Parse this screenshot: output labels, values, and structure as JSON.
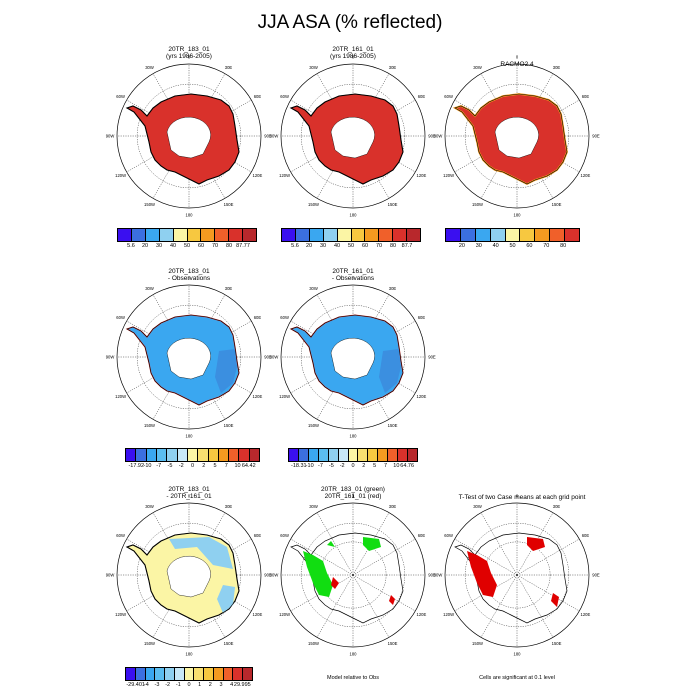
{
  "main_title": "JJA ASA (% reflected)",
  "lon_labels": [
    "0",
    "30E",
    "60E",
    "90E",
    "120E",
    "150E",
    "180",
    "150W",
    "120W",
    "90W",
    "60W",
    "30W"
  ],
  "panels": [
    {
      "id": "p1",
      "title1": "20TR_183_01",
      "title2": "(yrs 1986-2005)",
      "fill": "#d9312b",
      "kind": "full"
    },
    {
      "id": "p2",
      "title1": "20TR_161_01",
      "title2": "(yrs 1986-2005)",
      "fill": "#d9312b",
      "kind": "full"
    },
    {
      "id": "p3",
      "title1": "RACMO2.4",
      "title2": "",
      "fill": "#d9312b",
      "kind": "full_edge"
    },
    {
      "id": "p4",
      "title1": "20TR_183_01",
      "title2": "- Observations",
      "fill": "#3aa7f0",
      "kind": "diff"
    },
    {
      "id": "p5",
      "title1": "20TR_161_01",
      "title2": "- Observations",
      "fill": "#3aa7f0",
      "kind": "diff"
    },
    {
      "id": "p7",
      "title1": "20TR_183_01",
      "title2": "- 20TR_161_01",
      "fill": "#fbf5a5",
      "kind": "cross"
    },
    {
      "id": "p8",
      "title1": "20TR_183_01 (green)",
      "title2": "20TR_161_01 (red)",
      "fill": "none",
      "kind": "sig_green"
    },
    {
      "id": "p9",
      "title1": "T-Test of two Case means at each grid point",
      "title2": "",
      "fill": "none",
      "kind": "sig_red"
    }
  ],
  "colorbars": [
    {
      "id": "cb1",
      "colors": [
        "#3a0ff0",
        "#3b6fe0",
        "#3aa7f0",
        "#8fd0f0",
        "#fbf5a5",
        "#f7c840",
        "#f49a20",
        "#f0602a",
        "#d9312b",
        "#b8282c"
      ],
      "labels": [
        "5.6",
        "20",
        "30",
        "40",
        "50",
        "60",
        "70",
        "80",
        "87.77"
      ]
    },
    {
      "id": "cb2",
      "colors": [
        "#3a0ff0",
        "#3b6fe0",
        "#3aa7f0",
        "#8fd0f0",
        "#fbf5a5",
        "#f7c840",
        "#f49a20",
        "#f0602a",
        "#d9312b",
        "#b8282c"
      ],
      "labels": [
        "5.6",
        "20",
        "30",
        "40",
        "50",
        "60",
        "70",
        "80",
        "87.7"
      ]
    },
    {
      "id": "cb3",
      "colors": [
        "#3a0ff0",
        "#3b6fe0",
        "#3aa7f0",
        "#8fd0f0",
        "#fbf5a5",
        "#f7c840",
        "#f49a20",
        "#f0602a",
        "#d9312b"
      ],
      "labels": [
        "20",
        "30",
        "40",
        "50",
        "60",
        "70",
        "80"
      ]
    },
    {
      "id": "cb4",
      "colors": [
        "#3a0ff0",
        "#3b6fe0",
        "#3aa7f0",
        "#5bbdf0",
        "#8fd0f0",
        "#c8e8f7",
        "#fbf5a5",
        "#f9e070",
        "#f7c840",
        "#f49a20",
        "#f0602a",
        "#d9312b",
        "#b8282c"
      ],
      "labels": [
        "-17.92",
        "-10",
        "-7",
        "-5",
        "-2",
        "0",
        "2",
        "5",
        "7",
        "10",
        "64.42"
      ]
    },
    {
      "id": "cb5",
      "colors": [
        "#3a0ff0",
        "#3b6fe0",
        "#3aa7f0",
        "#5bbdf0",
        "#8fd0f0",
        "#c8e8f7",
        "#fbf5a5",
        "#f9e070",
        "#f7c840",
        "#f49a20",
        "#f0602a",
        "#d9312b",
        "#b8282c"
      ],
      "labels": [
        "-18.31",
        "-10",
        "-7",
        "-5",
        "-2",
        "0",
        "2",
        "5",
        "7",
        "10",
        "64.76"
      ]
    },
    {
      "id": "cb6",
      "colors": [
        "#3a0ff0",
        "#3b6fe0",
        "#3aa7f0",
        "#5bbdf0",
        "#8fd0f0",
        "#c8e8f7",
        "#fbf5a5",
        "#f9e070",
        "#f7c840",
        "#f49a20",
        "#f0602a",
        "#d9312b",
        "#b8282c"
      ],
      "labels": [
        "-29.401",
        "-4",
        "-3",
        "-2",
        "-1",
        "0",
        "1",
        "2",
        "3",
        "4",
        "29.995"
      ]
    }
  ],
  "notes": {
    "model_relative": "Model relative to Obs",
    "cells_significant": "Cells are significant at 0.1 level"
  }
}
